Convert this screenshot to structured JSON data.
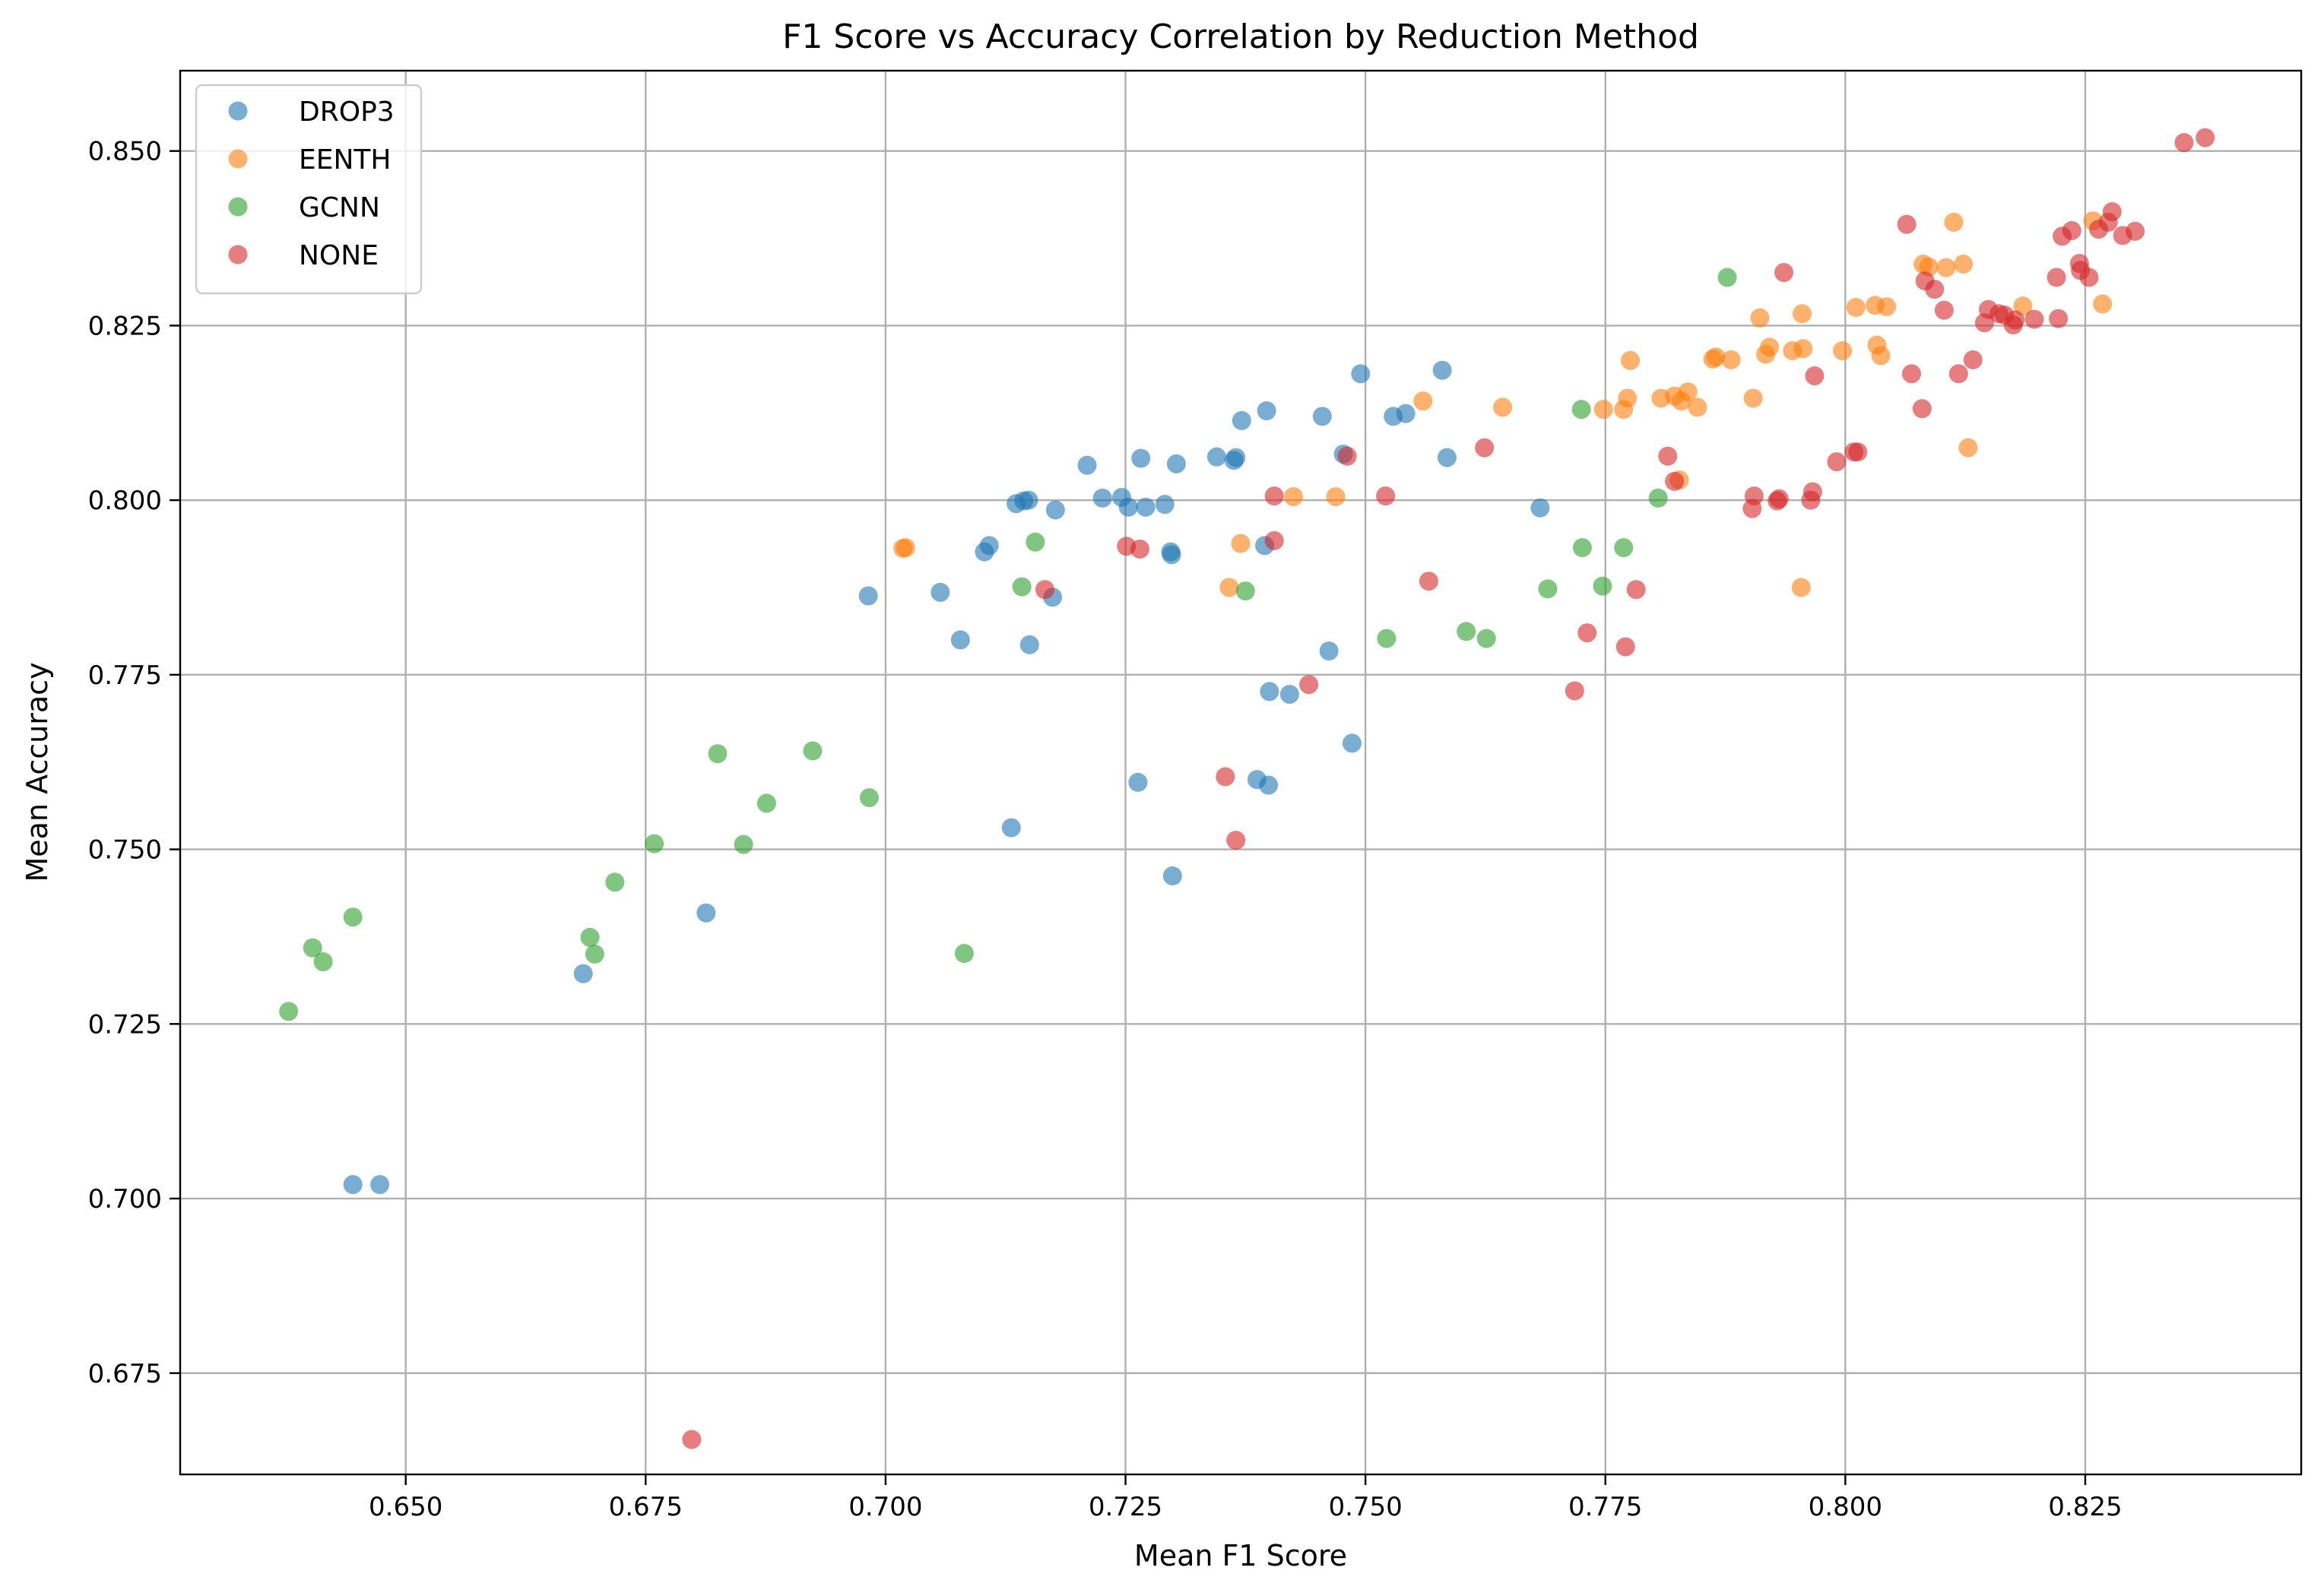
{
  "chart_data": {
    "type": "scatter",
    "title": "F1 Score vs Accuracy Correlation by Reduction Method",
    "xlabel": "Mean F1 Score",
    "ylabel": "Mean Accuracy",
    "xlim": [
      0.6265,
      0.8475
    ],
    "ylim": [
      0.6605,
      0.8615
    ],
    "xticks": [
      "0.650",
      "0.675",
      "0.700",
      "0.725",
      "0.750",
      "0.775",
      "0.800",
      "0.825"
    ],
    "yticks": [
      "0.675",
      "0.700",
      "0.725",
      "0.750",
      "0.775",
      "0.800",
      "0.825",
      "0.850"
    ],
    "grid": true,
    "legend_position": "top-left",
    "series": [
      {
        "name": "DROP3",
        "color": "#1f77b4",
        "points": [
          [
            0.6445,
            0.702
          ],
          [
            0.6473,
            0.702
          ],
          [
            0.6685,
            0.7322
          ],
          [
            0.6813,
            0.7409
          ],
          [
            0.6982,
            0.7863
          ],
          [
            0.7057,
            0.7868
          ],
          [
            0.7078,
            0.78
          ],
          [
            0.7103,
            0.7926
          ],
          [
            0.7108,
            0.7935
          ],
          [
            0.7131,
            0.7531
          ],
          [
            0.7136,
            0.7995
          ],
          [
            0.7144,
            0.7999
          ],
          [
            0.7149,
            0.8
          ],
          [
            0.715,
            0.7793
          ],
          [
            0.7174,
            0.7861
          ],
          [
            0.7177,
            0.7986
          ],
          [
            0.721,
            0.805
          ],
          [
            0.7226,
            0.8003
          ],
          [
            0.7246,
            0.8004
          ],
          [
            0.7253,
            0.799
          ],
          [
            0.7263,
            0.7596
          ],
          [
            0.7266,
            0.806
          ],
          [
            0.7271,
            0.799
          ],
          [
            0.7291,
            0.7994
          ],
          [
            0.7297,
            0.7926
          ],
          [
            0.7298,
            0.7922
          ],
          [
            0.7299,
            0.7462
          ],
          [
            0.7303,
            0.8052
          ],
          [
            0.7345,
            0.8062
          ],
          [
            0.7363,
            0.8057
          ],
          [
            0.7365,
            0.8061
          ],
          [
            0.7371,
            0.8114
          ],
          [
            0.7387,
            0.76
          ],
          [
            0.7395,
            0.7935
          ],
          [
            0.7397,
            0.8128
          ],
          [
            0.74,
            0.7726
          ],
          [
            0.7399,
            0.7592
          ],
          [
            0.7421,
            0.7722
          ],
          [
            0.7455,
            0.812
          ],
          [
            0.7462,
            0.7784
          ],
          [
            0.7477,
            0.8066
          ],
          [
            0.7486,
            0.7652
          ],
          [
            0.7495,
            0.8181
          ],
          [
            0.7529,
            0.812
          ],
          [
            0.7542,
            0.8124
          ],
          [
            0.758,
            0.8186
          ],
          [
            0.7585,
            0.8061
          ],
          [
            0.7682,
            0.7989
          ]
        ]
      },
      {
        "name": "EENTH",
        "color": "#ff7f0e",
        "points": [
          [
            0.7018,
            0.7931
          ],
          [
            0.7021,
            0.7932
          ],
          [
            0.7358,
            0.7875
          ],
          [
            0.737,
            0.7938
          ],
          [
            0.7425,
            0.8005
          ],
          [
            0.7469,
            0.8005
          ],
          [
            0.756,
            0.8142
          ],
          [
            0.7643,
            0.8133
          ],
          [
            0.7748,
            0.813
          ],
          [
            0.7769,
            0.813
          ],
          [
            0.7773,
            0.8146
          ],
          [
            0.7776,
            0.82
          ],
          [
            0.7808,
            0.8146
          ],
          [
            0.7822,
            0.8149
          ],
          [
            0.7827,
            0.8029
          ],
          [
            0.7829,
            0.8142
          ],
          [
            0.7836,
            0.8155
          ],
          [
            0.7846,
            0.8133
          ],
          [
            0.7862,
            0.8202
          ],
          [
            0.7865,
            0.8205
          ],
          [
            0.7881,
            0.8201
          ],
          [
            0.7904,
            0.8146
          ],
          [
            0.7911,
            0.8261
          ],
          [
            0.7917,
            0.8209
          ],
          [
            0.7921,
            0.8219
          ],
          [
            0.7945,
            0.8214
          ],
          [
            0.7954,
            0.7875
          ],
          [
            0.7955,
            0.8267
          ],
          [
            0.7956,
            0.8217
          ],
          [
            0.7997,
            0.8214
          ],
          [
            0.8011,
            0.8276
          ],
          [
            0.8031,
            0.8279
          ],
          [
            0.8033,
            0.8222
          ],
          [
            0.8037,
            0.8207
          ],
          [
            0.8043,
            0.8277
          ],
          [
            0.8081,
            0.8338
          ],
          [
            0.8087,
            0.8334
          ],
          [
            0.8105,
            0.8333
          ],
          [
            0.8113,
            0.8398
          ],
          [
            0.8123,
            0.8338
          ],
          [
            0.8128,
            0.8075
          ],
          [
            0.8185,
            0.8278
          ],
          [
            0.8258,
            0.84
          ],
          [
            0.8268,
            0.8281
          ]
        ]
      },
      {
        "name": "GCNN",
        "color": "#2ca02c",
        "points": [
          [
            0.6378,
            0.7268
          ],
          [
            0.6403,
            0.7359
          ],
          [
            0.6414,
            0.7339
          ],
          [
            0.6445,
            0.7403
          ],
          [
            0.6692,
            0.7374
          ],
          [
            0.6697,
            0.735
          ],
          [
            0.6718,
            0.7453
          ],
          [
            0.6759,
            0.7508
          ],
          [
            0.6825,
            0.7637
          ],
          [
            0.6852,
            0.7507
          ],
          [
            0.6876,
            0.7566
          ],
          [
            0.6924,
            0.7641
          ],
          [
            0.6983,
            0.7574
          ],
          [
            0.7082,
            0.7351
          ],
          [
            0.7142,
            0.7876
          ],
          [
            0.7156,
            0.794
          ],
          [
            0.7375,
            0.787
          ],
          [
            0.7522,
            0.7802
          ],
          [
            0.7605,
            0.7812
          ],
          [
            0.7626,
            0.7802
          ],
          [
            0.769,
            0.7873
          ],
          [
            0.7725,
            0.813
          ],
          [
            0.7726,
            0.7932
          ],
          [
            0.7747,
            0.7877
          ],
          [
            0.7769,
            0.7932
          ],
          [
            0.7805,
            0.8003
          ],
          [
            0.7877,
            0.8319
          ]
        ]
      },
      {
        "name": "NONE",
        "color": "#d62728",
        "points": [
          [
            0.6798,
            0.6655
          ],
          [
            0.7166,
            0.7872
          ],
          [
            0.7251,
            0.7934
          ],
          [
            0.7265,
            0.793
          ],
          [
            0.7354,
            0.7604
          ],
          [
            0.7365,
            0.7513
          ],
          [
            0.7405,
            0.8006
          ],
          [
            0.7405,
            0.7942
          ],
          [
            0.7441,
            0.7736
          ],
          [
            0.7481,
            0.8063
          ],
          [
            0.7521,
            0.8006
          ],
          [
            0.7566,
            0.7884
          ],
          [
            0.7624,
            0.8075
          ],
          [
            0.7718,
            0.7727
          ],
          [
            0.7731,
            0.781
          ],
          [
            0.7771,
            0.779
          ],
          [
            0.7782,
            0.7872
          ],
          [
            0.7815,
            0.8063
          ],
          [
            0.7822,
            0.8027
          ],
          [
            0.7903,
            0.7988
          ],
          [
            0.7905,
            0.8006
          ],
          [
            0.7929,
            0.7999
          ],
          [
            0.7931,
            0.8002
          ],
          [
            0.7936,
            0.8326
          ],
          [
            0.7964,
            0.8
          ],
          [
            0.7966,
            0.8012
          ],
          [
            0.7968,
            0.8178
          ],
          [
            0.7991,
            0.8055
          ],
          [
            0.8009,
            0.8069
          ],
          [
            0.8013,
            0.8069
          ],
          [
            0.8064,
            0.8395
          ],
          [
            0.8069,
            0.8181
          ],
          [
            0.808,
            0.8131
          ],
          [
            0.8083,
            0.8314
          ],
          [
            0.8093,
            0.8302
          ],
          [
            0.8103,
            0.8272
          ],
          [
            0.8118,
            0.8181
          ],
          [
            0.8133,
            0.8201
          ],
          [
            0.8145,
            0.8254
          ],
          [
            0.8149,
            0.8273
          ],
          [
            0.816,
            0.8267
          ],
          [
            0.8166,
            0.8265
          ],
          [
            0.8175,
            0.8251
          ],
          [
            0.8177,
            0.8258
          ],
          [
            0.8197,
            0.8259
          ],
          [
            0.822,
            0.8319
          ],
          [
            0.8222,
            0.826
          ],
          [
            0.8226,
            0.8378
          ],
          [
            0.8236,
            0.8386
          ],
          [
            0.8244,
            0.8339
          ],
          [
            0.8245,
            0.8329
          ],
          [
            0.8254,
            0.8319
          ],
          [
            0.8264,
            0.8388
          ],
          [
            0.8274,
            0.8398
          ],
          [
            0.8278,
            0.8413
          ],
          [
            0.8289,
            0.8379
          ],
          [
            0.8302,
            0.8385
          ],
          [
            0.8353,
            0.8512
          ],
          [
            0.8375,
            0.8519
          ]
        ]
      }
    ]
  }
}
